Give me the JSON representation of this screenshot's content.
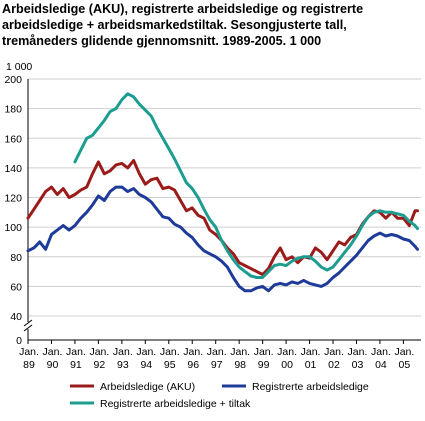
{
  "title_lines": [
    "Arbeidsledige (AKU), registrerte arbeidsledige og registrerte",
    "arbeidsledige + arbeidsmarkedstiltak. Sesongjusterte tall,",
    "tremåneders glidende gjennomsnitt. 1989-2005. 1 000"
  ],
  "chart_data": {
    "type": "line",
    "unit_label": "1 000",
    "x_ticks": [
      {
        "month": "Jan.",
        "year": "89",
        "x": 1989.0
      },
      {
        "month": "Jan.",
        "year": "90",
        "x": 1990.0
      },
      {
        "month": "Jan.",
        "year": "91",
        "x": 1991.0
      },
      {
        "month": "Jan.",
        "year": "92",
        "x": 1992.0
      },
      {
        "month": "Jan.",
        "year": "93",
        "x": 1993.0
      },
      {
        "month": "Jan.",
        "year": "94",
        "x": 1994.0
      },
      {
        "month": "Jan.",
        "year": "95",
        "x": 1995.0
      },
      {
        "month": "Jan.",
        "year": "96",
        "x": 1996.0
      },
      {
        "month": "Jan.",
        "year": "97",
        "x": 1997.0
      },
      {
        "month": "Jan.",
        "year": "98",
        "x": 1998.0
      },
      {
        "month": "Jan.",
        "year": "99",
        "x": 1999.0
      },
      {
        "month": "Jan.",
        "year": "00",
        "x": 2000.0
      },
      {
        "month": "Jan.",
        "year": "01",
        "x": 2001.0
      },
      {
        "month": "Jan.",
        "year": "02",
        "x": 2002.0
      },
      {
        "month": "Jan.",
        "year": "03",
        "x": 2003.0
      },
      {
        "month": "Jan.",
        "year": "04",
        "x": 2004.0
      },
      {
        "month": "Jan.",
        "year": "05",
        "x": 2005.0
      }
    ],
    "xlim": [
      1989.0,
      2005.75
    ],
    "y_ticks": [
      0,
      40,
      60,
      80,
      100,
      120,
      140,
      160,
      180,
      200
    ],
    "ylim_break": [
      0,
      40
    ],
    "ylim": [
      40,
      200
    ],
    "axis_break": true,
    "grid": true,
    "legend_position": "bottom",
    "series": [
      {
        "name": "Arbeidsledige (AKU)",
        "color": "#9b1b1b",
        "x": [
          1989.0,
          1989.25,
          1989.5,
          1989.75,
          1990.0,
          1990.25,
          1990.5,
          1990.75,
          1991.0,
          1991.25,
          1991.5,
          1991.75,
          1992.0,
          1992.25,
          1992.5,
          1992.75,
          1993.0,
          1993.25,
          1993.5,
          1993.75,
          1994.0,
          1994.25,
          1994.5,
          1994.75,
          1995.0,
          1995.25,
          1995.5,
          1995.75,
          1996.0,
          1996.25,
          1996.5,
          1996.75,
          1997.0,
          1997.25,
          1997.5,
          1997.75,
          1998.0,
          1998.25,
          1998.5,
          1998.75,
          1999.0,
          1999.25,
          1999.5,
          1999.75,
          2000.0,
          2000.25,
          2000.5,
          2000.75,
          2001.0,
          2001.25,
          2001.5,
          2001.75,
          2002.0,
          2002.25,
          2002.5,
          2002.75,
          2003.0,
          2003.25,
          2003.5,
          2003.75,
          2004.0,
          2004.25,
          2004.5,
          2004.75,
          2005.0,
          2005.25,
          2005.5,
          2005.6
        ],
        "values": [
          106,
          112,
          118,
          124,
          127,
          122,
          126,
          120,
          122,
          125,
          127,
          136,
          144,
          136,
          138,
          142,
          143,
          140,
          145,
          136,
          129,
          132,
          133,
          126,
          127,
          125,
          118,
          111,
          113,
          108,
          106,
          98,
          95,
          91,
          86,
          82,
          76,
          74,
          72,
          70,
          68,
          72,
          80,
          86,
          78,
          80,
          76,
          80,
          79,
          86,
          83,
          78,
          84,
          90,
          88,
          93,
          95,
          102,
          107,
          111,
          110,
          106,
          110,
          106,
          106,
          101,
          111,
          111
        ]
      },
      {
        "name": "Registrerte arbeidsledige",
        "color": "#1f3b9a",
        "x": [
          1989.0,
          1989.25,
          1989.5,
          1989.75,
          1990.0,
          1990.25,
          1990.5,
          1990.75,
          1991.0,
          1991.25,
          1991.5,
          1991.75,
          1992.0,
          1992.25,
          1992.5,
          1992.75,
          1993.0,
          1993.25,
          1993.5,
          1993.75,
          1994.0,
          1994.25,
          1994.5,
          1994.75,
          1995.0,
          1995.25,
          1995.5,
          1995.75,
          1996.0,
          1996.25,
          1996.5,
          1996.75,
          1997.0,
          1997.25,
          1997.5,
          1997.75,
          1998.0,
          1998.25,
          1998.5,
          1998.75,
          1999.0,
          1999.25,
          1999.5,
          1999.75,
          2000.0,
          2000.25,
          2000.5,
          2000.75,
          2001.0,
          2001.25,
          2001.5,
          2001.75,
          2002.0,
          2002.25,
          2002.5,
          2002.75,
          2003.0,
          2003.25,
          2003.5,
          2003.75,
          2004.0,
          2004.25,
          2004.5,
          2004.75,
          2005.0,
          2005.25,
          2005.5,
          2005.6
        ],
        "values": [
          84,
          86,
          90,
          85,
          95,
          98,
          101,
          98,
          101,
          106,
          110,
          115,
          121,
          118,
          124,
          127,
          127,
          124,
          126,
          122,
          120,
          117,
          112,
          107,
          106,
          102,
          100,
          96,
          93,
          88,
          84,
          82,
          80,
          77,
          73,
          66,
          60,
          57,
          57,
          59,
          60,
          57,
          61,
          62,
          61,
          63,
          62,
          64,
          62,
          61,
          60,
          62,
          66,
          69,
          73,
          77,
          81,
          86,
          91,
          94,
          96,
          94,
          95,
          94,
          92,
          91,
          87,
          85
        ]
      },
      {
        "name": "Registrerte arbeidsledige + tiltak",
        "color": "#1c9d90",
        "x": [
          1991.0,
          1991.25,
          1991.5,
          1991.75,
          1992.0,
          1992.25,
          1992.5,
          1992.75,
          1993.0,
          1993.25,
          1993.5,
          1993.75,
          1994.0,
          1994.25,
          1994.5,
          1994.75,
          1995.0,
          1995.25,
          1995.5,
          1995.75,
          1996.0,
          1996.25,
          1996.5,
          1996.75,
          1997.0,
          1997.25,
          1997.5,
          1997.75,
          1998.0,
          1998.25,
          1998.5,
          1998.75,
          1999.0,
          1999.25,
          1999.5,
          1999.75,
          2000.0,
          2000.25,
          2000.5,
          2000.75,
          2001.0,
          2001.25,
          2001.5,
          2001.75,
          2002.0,
          2002.25,
          2002.5,
          2002.75,
          2003.0,
          2003.25,
          2003.5,
          2003.75,
          2004.0,
          2004.25,
          2004.5,
          2004.75,
          2005.0,
          2005.25,
          2005.5,
          2005.6
        ],
        "values": [
          144,
          152,
          160,
          162,
          167,
          172,
          178,
          180,
          186,
          190,
          188,
          183,
          179,
          175,
          167,
          160,
          153,
          146,
          138,
          130,
          126,
          120,
          112,
          105,
          100,
          91,
          84,
          78,
          73,
          70,
          67,
          66,
          66,
          70,
          74,
          75,
          74,
          77,
          79,
          80,
          80,
          77,
          73,
          71,
          73,
          78,
          83,
          88,
          94,
          101,
          107,
          110,
          111,
          110,
          110,
          109,
          108,
          104,
          101,
          99
        ]
      }
    ]
  }
}
